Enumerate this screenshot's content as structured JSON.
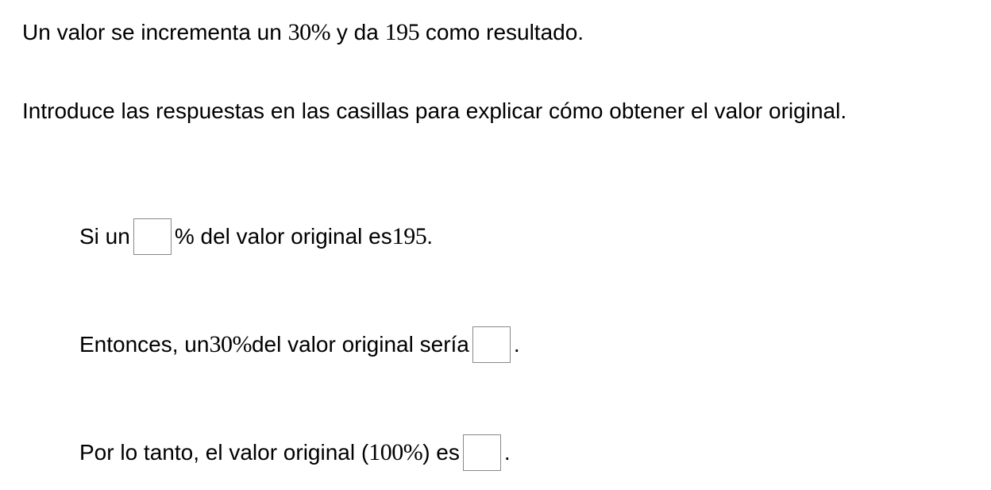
{
  "text_color": "#000000",
  "background_color": "#ffffff",
  "box_border_color": "#888888",
  "intro": {
    "line1_prefix": "Un valor se incrementa un ",
    "line1_percent": "30%",
    "line1_mid": " y da ",
    "line1_result": "195",
    "line1_suffix": " como resultado.",
    "line2": "Introduce las respuestas en las casillas para explicar cómo obtener el valor original."
  },
  "q1": {
    "prefix": "Si un ",
    "suffix_before_num": "% del valor original es ",
    "value": "195",
    "suffix_after_num": "."
  },
  "q2": {
    "prefix": "Entonces, un ",
    "percent": "30%",
    "mid": " del valor original sería ",
    "suffix": "."
  },
  "q3": {
    "prefix": "Por lo tanto, el valor original (",
    "percent": "100%",
    "suffix_before_box": ")  es ",
    "suffix_after_box": "."
  }
}
